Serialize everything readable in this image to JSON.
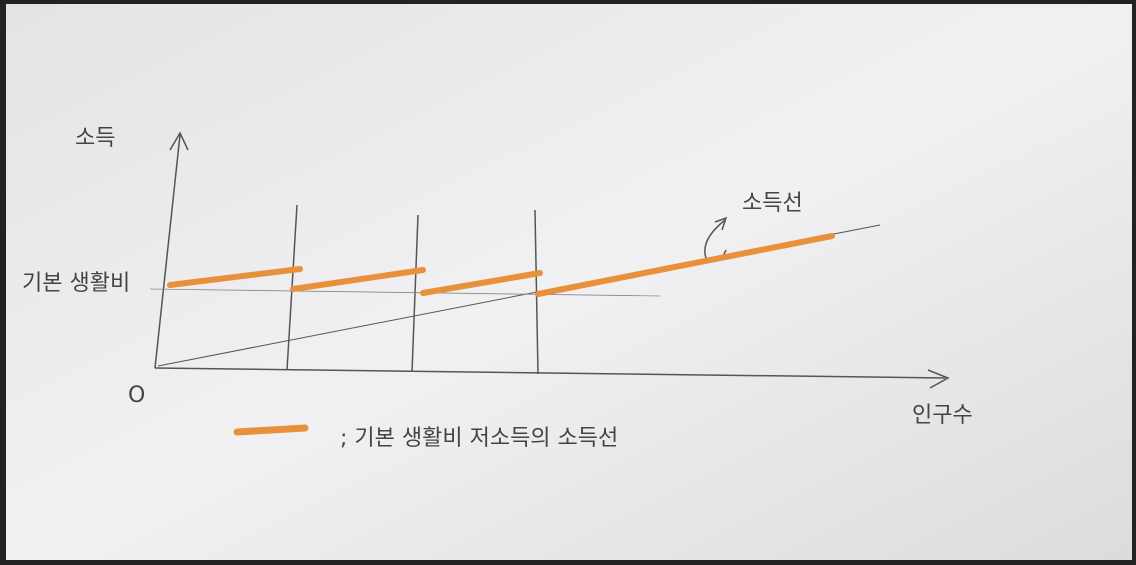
{
  "axes": {
    "y_label": "소득",
    "x_label": "인구수",
    "origin": "O"
  },
  "labels": {
    "basic_living": "기본 생활비",
    "income_line": "소득선"
  },
  "legend": {
    "text": "; 기본 생활비 저소득의 소득선"
  }
}
